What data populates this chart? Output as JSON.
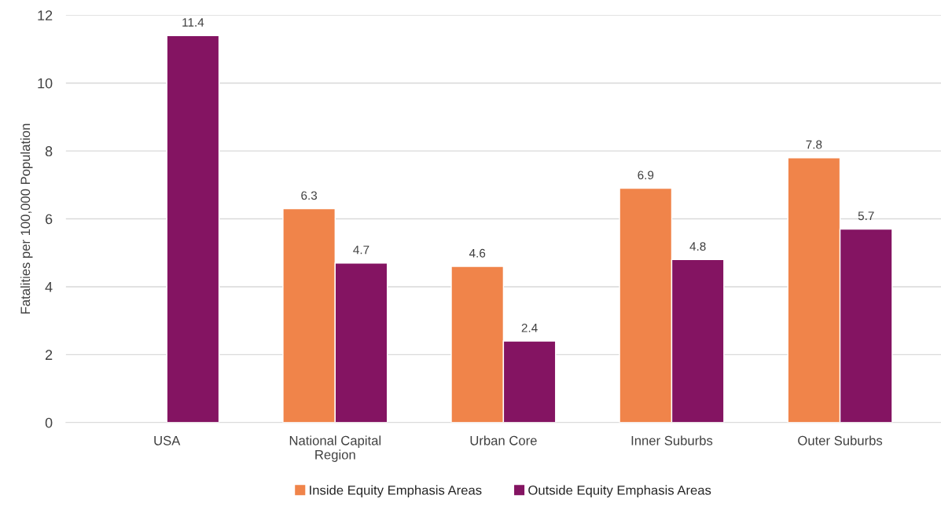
{
  "chart_data": {
    "type": "bar",
    "ylabel": "Fatalities per 100,000 Population",
    "categories": [
      "USA",
      "National Capital\nRegion",
      "Urban Core",
      "Inner Suburbs",
      "Outer Suburbs"
    ],
    "series": [
      {
        "name": "Inside Equity Emphasis Areas",
        "color": "#f0844a",
        "values": [
          null,
          6.3,
          4.6,
          6.9,
          7.8
        ]
      },
      {
        "name": "Outside Equity Emphasis Areas",
        "color": "#841462",
        "values": [
          11.4,
          4.7,
          2.4,
          4.8,
          5.7
        ]
      }
    ],
    "ylim": [
      0,
      12
    ],
    "yticks": [
      0,
      2,
      4,
      6,
      8,
      10,
      12
    ],
    "grid": "y",
    "legend": "bottom",
    "data_labels": true
  }
}
